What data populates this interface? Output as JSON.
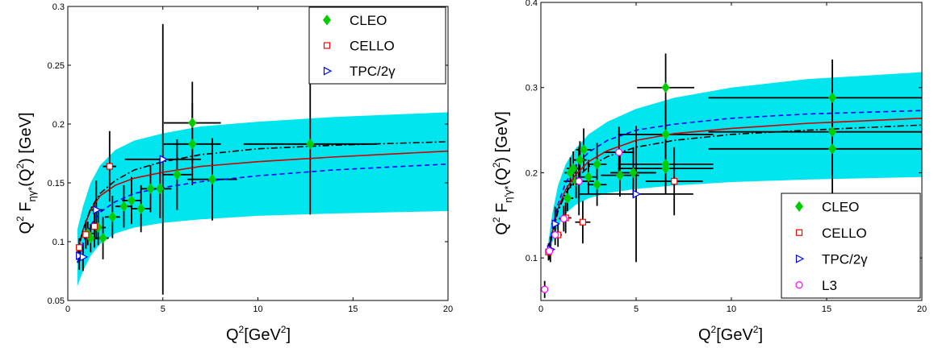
{
  "chart_data": [
    {
      "type": "scatter",
      "id": "eta",
      "ylabel_main": "Q",
      "ylabel_sup1": "2",
      "ylabel_mid": " F",
      "ylabel_sub": "ηγ*",
      "ylabel_tail": "(Q",
      "ylabel_sup2": "2",
      "ylabel_end": ") [GeV]",
      "xlabel_main": "Q",
      "xlabel_sup": "2",
      "xlabel_mid": "[GeV",
      "xlabel_sup2": "2",
      "xlabel_end": "]",
      "xlim": [
        0,
        20
      ],
      "ylim": [
        0.05,
        0.3
      ],
      "xticks": [
        0,
        5,
        10,
        15,
        20
      ],
      "yticks": [
        0.05,
        0.1,
        0.15,
        0.2,
        0.25,
        0.3
      ],
      "ytick_labels": [
        "0.05",
        "0.1",
        "0.15",
        "0.2",
        "0.25",
        "0.3"
      ],
      "legend_position": "top-right",
      "legend": [
        "CLEO",
        "CELLO",
        "TPC/2γ"
      ],
      "colors": {
        "cleo": "#00cc00",
        "cello": "#ff0000",
        "tpc": "#0000ff",
        "band": "#00e5ee",
        "fit": "#cc0000"
      },
      "band": {
        "x": [
          0.5,
          0.8,
          1.2,
          1.7,
          2.5,
          3.5,
          5,
          7,
          10,
          14,
          20
        ],
        "upper": [
          0.11,
          0.13,
          0.15,
          0.165,
          0.178,
          0.186,
          0.192,
          0.198,
          0.202,
          0.206,
          0.21
        ],
        "lower": [
          0.062,
          0.075,
          0.088,
          0.098,
          0.107,
          0.112,
          0.116,
          0.119,
          0.122,
          0.124,
          0.126
        ]
      },
      "curves": [
        {
          "style": "solid",
          "x": [
            0.5,
            0.8,
            1.2,
            1.7,
            2.5,
            3.5,
            5,
            7,
            10,
            14,
            20
          ],
          "y": [
            0.092,
            0.11,
            0.127,
            0.139,
            0.148,
            0.154,
            0.159,
            0.164,
            0.168,
            0.172,
            0.177
          ]
        },
        {
          "style": "dashed",
          "x": [
            0.5,
            0.8,
            1.2,
            1.7,
            2.5,
            3.5,
            5,
            7,
            10,
            14,
            20
          ],
          "y": [
            0.082,
            0.098,
            0.114,
            0.125,
            0.134,
            0.141,
            0.146,
            0.151,
            0.156,
            0.161,
            0.166
          ]
        },
        {
          "style": "dashdot",
          "x": [
            0.5,
            0.8,
            1.2,
            1.7,
            2.5,
            3.5,
            5,
            7,
            10,
            14,
            20
          ],
          "y": [
            0.09,
            0.11,
            0.128,
            0.141,
            0.152,
            0.161,
            0.168,
            0.174,
            0.179,
            0.182,
            0.185
          ]
        }
      ],
      "series": [
        {
          "name": "CLEO",
          "marker": "diamond",
          "points": [
            {
              "x": 1.05,
              "y": 0.107,
              "xerr": 0.3,
              "yerr": 0.01
            },
            {
              "x": 1.2,
              "y": 0.103,
              "xerr": 0.35,
              "yerr": 0.012
            },
            {
              "x": 1.6,
              "y": 0.112,
              "xerr": 0.4,
              "yerr": 0.015
            },
            {
              "x": 1.85,
              "y": 0.103,
              "xerr": 0.3,
              "yerr": 0.018
            },
            {
              "x": 2.35,
              "y": 0.121,
              "xerr": 0.4,
              "yerr": 0.018
            },
            {
              "x": 2.95,
              "y": 0.13,
              "xerr": 0.45,
              "yerr": 0.018
            },
            {
              "x": 3.35,
              "y": 0.135,
              "xerr": 0.5,
              "yerr": 0.02
            },
            {
              "x": 3.85,
              "y": 0.128,
              "xerr": 0.5,
              "yerr": 0.02
            },
            {
              "x": 4.35,
              "y": 0.145,
              "xerr": 0.5,
              "yerr": 0.02
            },
            {
              "x": 4.85,
              "y": 0.145,
              "xerr": 0.6,
              "yerr": 0.025
            },
            {
              "x": 5.75,
              "y": 0.157,
              "xerr": 0.75,
              "yerr": 0.03
            },
            {
              "x": 6.55,
              "y": 0.201,
              "xerr": 1.5,
              "yerr": 0.035
            },
            {
              "x": 6.55,
              "y": 0.183,
              "xerr": 1.5,
              "yerr": 0.035
            },
            {
              "x": 7.6,
              "y": 0.153,
              "xerr": 1.3,
              "yerr": 0.035
            },
            {
              "x": 12.75,
              "y": 0.183,
              "xerr": 3.5,
              "yerr": 0.06
            }
          ]
        },
        {
          "name": "CELLO",
          "marker": "square",
          "points": [
            {
              "x": 0.6,
              "y": 0.095,
              "xerr": 0.1,
              "yerr": 0.008
            },
            {
              "x": 0.95,
              "y": 0.106,
              "xerr": 0.15,
              "yerr": 0.012
            },
            {
              "x": 1.4,
              "y": 0.113,
              "xerr": 0.2,
              "yerr": 0.018
            },
            {
              "x": 2.2,
              "y": 0.164,
              "xerr": 0.35,
              "yerr": 0.03
            }
          ]
        },
        {
          "name": "TPC/2γ",
          "marker": "triangle-right",
          "points": [
            {
              "x": 0.6,
              "y": 0.088,
              "xerr": 0.15,
              "yerr": 0.012
            },
            {
              "x": 0.8,
              "y": 0.087,
              "xerr": 0.15,
              "yerr": 0.012
            },
            {
              "x": 1.5,
              "y": 0.127,
              "xerr": 0.35,
              "yerr": 0.025
            },
            {
              "x": 5.0,
              "y": 0.17,
              "xerr": 2.0,
              "yerr": 0.115
            }
          ]
        }
      ]
    },
    {
      "type": "scatter",
      "id": "etaprime",
      "ylabel_main": "Q",
      "ylabel_sup1": "2",
      "ylabel_mid": " F",
      "ylabel_sub": "η'γ*",
      "ylabel_tail": "(Q",
      "ylabel_sup2": "2",
      "ylabel_end": ") [GeV]",
      "xlabel_main": "Q",
      "xlabel_sup": "2",
      "xlabel_mid": "[GeV",
      "xlabel_sup2": "2",
      "xlabel_end": "]",
      "xlim": [
        0,
        20
      ],
      "ylim": [
        0.05,
        0.4
      ],
      "xticks": [
        0,
        5,
        10,
        15,
        20
      ],
      "yticks": [
        0.1,
        0.2,
        0.3,
        0.4
      ],
      "ytick_labels": [
        "0.1",
        "0.2",
        "0.3",
        "0.4"
      ],
      "legend_position": "bottom-right",
      "legend": [
        "CLEO",
        "CELLO",
        "TPC/2γ",
        "L3"
      ],
      "colors": {
        "cleo": "#00cc00",
        "cello": "#ff0000",
        "tpc": "#0000ff",
        "l3": "#ff00ff",
        "band": "#00e5ee",
        "fit": "#cc0000"
      },
      "band": {
        "x": [
          0.4,
          0.6,
          0.9,
          1.3,
          1.8,
          2.5,
          3.5,
          5,
          7,
          10,
          14,
          20
        ],
        "upper": [
          0.12,
          0.152,
          0.185,
          0.21,
          0.228,
          0.245,
          0.26,
          0.275,
          0.288,
          0.3,
          0.31,
          0.318
        ],
        "lower": [
          0.098,
          0.118,
          0.138,
          0.152,
          0.162,
          0.17,
          0.176,
          0.181,
          0.185,
          0.189,
          0.192,
          0.195
        ]
      },
      "curves": [
        {
          "style": "solid",
          "x": [
            0.4,
            0.6,
            0.9,
            1.3,
            1.8,
            2.5,
            3.5,
            5,
            7,
            10,
            14,
            20
          ],
          "y": [
            0.105,
            0.13,
            0.158,
            0.18,
            0.197,
            0.213,
            0.226,
            0.238,
            0.246,
            0.252,
            0.258,
            0.264
          ]
        },
        {
          "style": "dashed",
          "x": [
            0.4,
            0.6,
            0.9,
            1.3,
            1.8,
            2.5,
            3.5,
            5,
            7,
            10,
            14,
            20
          ],
          "y": [
            0.106,
            0.133,
            0.163,
            0.188,
            0.207,
            0.224,
            0.238,
            0.25,
            0.257,
            0.264,
            0.269,
            0.273
          ]
        },
        {
          "style": "dashdot",
          "x": [
            0.4,
            0.6,
            0.9,
            1.3,
            1.8,
            2.5,
            3.5,
            5,
            7,
            10,
            14,
            20
          ],
          "y": [
            0.104,
            0.128,
            0.155,
            0.176,
            0.192,
            0.207,
            0.219,
            0.23,
            0.238,
            0.245,
            0.25,
            0.256
          ]
        }
      ],
      "series": [
        {
          "name": "CLEO",
          "marker": "diamond",
          "points": [
            {
              "x": 1.4,
              "y": 0.17,
              "xerr": 0.3,
              "yerr": 0.015
            },
            {
              "x": 1.55,
              "y": 0.2,
              "xerr": 0.3,
              "yerr": 0.018
            },
            {
              "x": 1.7,
              "y": 0.205,
              "xerr": 0.35,
              "yerr": 0.02
            },
            {
              "x": 1.85,
              "y": 0.19,
              "xerr": 0.3,
              "yerr": 0.02
            },
            {
              "x": 2.05,
              "y": 0.215,
              "xerr": 0.35,
              "yerr": 0.022
            },
            {
              "x": 2.25,
              "y": 0.227,
              "xerr": 0.4,
              "yerr": 0.025
            },
            {
              "x": 2.5,
              "y": 0.195,
              "xerr": 0.4,
              "yerr": 0.02
            },
            {
              "x": 2.95,
              "y": 0.21,
              "xerr": 0.5,
              "yerr": 0.025
            },
            {
              "x": 2.95,
              "y": 0.186,
              "xerr": 0.5,
              "yerr": 0.025
            },
            {
              "x": 4.15,
              "y": 0.197,
              "xerr": 1.0,
              "yerr": 0.025
            },
            {
              "x": 4.85,
              "y": 0.2,
              "xerr": 1.2,
              "yerr": 0.03
            },
            {
              "x": 6.55,
              "y": 0.3,
              "xerr": 1.5,
              "yerr": 0.04
            },
            {
              "x": 6.55,
              "y": 0.245,
              "xerr": 2.5,
              "yerr": 0.035
            },
            {
              "x": 6.55,
              "y": 0.21,
              "xerr": 2.5,
              "yerr": 0.03
            },
            {
              "x": 6.55,
              "y": 0.205,
              "xerr": 2.5,
              "yerr": 0.03
            },
            {
              "x": 15.3,
              "y": 0.288,
              "xerr": 6.5,
              "yerr": 0.045
            },
            {
              "x": 15.3,
              "y": 0.248,
              "xerr": 6.5,
              "yerr": 0.05
            },
            {
              "x": 15.3,
              "y": 0.228,
              "xerr": 6.5,
              "yerr": 0.07
            }
          ]
        },
        {
          "name": "CELLO",
          "marker": "square",
          "points": [
            {
              "x": 0.4,
              "y": 0.107,
              "xerr": 0.1,
              "yerr": 0.01
            },
            {
              "x": 0.9,
              "y": 0.127,
              "xerr": 0.2,
              "yerr": 0.014
            },
            {
              "x": 1.3,
              "y": 0.147,
              "xerr": 0.3,
              "yerr": 0.018
            },
            {
              "x": 2.2,
              "y": 0.142,
              "xerr": 0.4,
              "yerr": 0.025
            },
            {
              "x": 7.0,
              "y": 0.19,
              "xerr": 1.5,
              "yerr": 0.04
            }
          ]
        },
        {
          "name": "TPC/2γ",
          "marker": "triangle-right",
          "points": [
            {
              "x": 0.5,
              "y": 0.11,
              "xerr": 0.2,
              "yerr": 0.015
            },
            {
              "x": 0.75,
              "y": 0.14,
              "xerr": 0.2,
              "yerr": 0.02
            },
            {
              "x": 2.0,
              "y": 0.19,
              "xerr": 0.8,
              "yerr": 0.04
            },
            {
              "x": 5.0,
              "y": 0.175,
              "xerr": 3.0,
              "yerr": 0.08
            }
          ]
        },
        {
          "name": "L3",
          "marker": "circle",
          "points": [
            {
              "x": 0.2,
              "y": 0.063,
              "xerr": 0.05,
              "yerr": 0.01
            },
            {
              "x": 0.45,
              "y": 0.108,
              "xerr": 0.1,
              "yerr": 0.01
            },
            {
              "x": 0.75,
              "y": 0.127,
              "xerr": 0.15,
              "yerr": 0.012
            },
            {
              "x": 1.2,
              "y": 0.146,
              "xerr": 0.25,
              "yerr": 0.015
            },
            {
              "x": 2.0,
              "y": 0.19,
              "xerr": 0.4,
              "yerr": 0.02
            },
            {
              "x": 4.1,
              "y": 0.224,
              "xerr": 0.8,
              "yerr": 0.03
            }
          ]
        }
      ]
    }
  ]
}
